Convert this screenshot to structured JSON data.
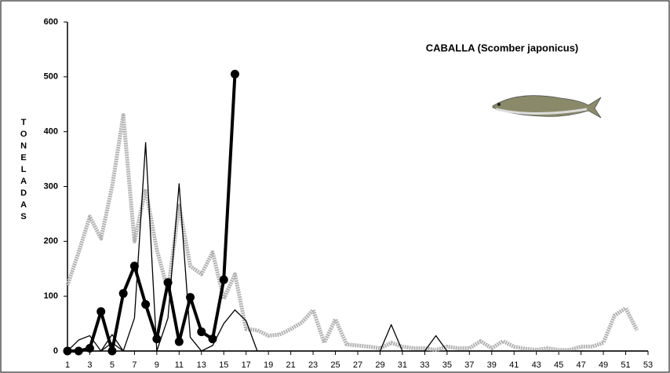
{
  "chart_data": {
    "type": "line",
    "title": "CABALLA (Scomber japonicus)",
    "y_label": "TONELADAS",
    "x": [
      1,
      2,
      3,
      4,
      5,
      6,
      7,
      8,
      9,
      10,
      11,
      12,
      13,
      14,
      15,
      16,
      17,
      18,
      19,
      20,
      21,
      22,
      23,
      24,
      25,
      26,
      27,
      28,
      29,
      30,
      31,
      32,
      33,
      34,
      35,
      36,
      37,
      38,
      39,
      40,
      41,
      42,
      43,
      44,
      45,
      46,
      47,
      48,
      49,
      50,
      51,
      52,
      53
    ],
    "xlim": [
      1,
      53
    ],
    "xticks": [
      1,
      3,
      5,
      7,
      9,
      11,
      13,
      15,
      17,
      19,
      21,
      23,
      25,
      27,
      29,
      31,
      33,
      35,
      37,
      39,
      41,
      43,
      45,
      47,
      49,
      51,
      53
    ],
    "ylim": [
      0,
      600
    ],
    "yticks": [
      0,
      100,
      200,
      300,
      400,
      500,
      600
    ],
    "series": [
      {
        "color": "#b3b3b3",
        "style": "dashed-thick",
        "values": [
          120,
          180,
          245,
          205,
          300,
          430,
          200,
          295,
          185,
          110,
          265,
          155,
          140,
          180,
          95,
          140,
          40,
          38,
          28,
          30,
          40,
          52,
          75,
          15,
          58,
          12,
          10,
          8,
          5,
          15,
          8,
          5,
          5,
          2,
          8,
          5,
          5,
          18,
          5,
          18,
          8,
          4,
          2,
          5,
          2,
          2,
          8,
          8,
          15,
          65,
          78,
          38,
          null
        ]
      },
      {
        "color": "#000000",
        "style": "thin",
        "values": [
          0,
          20,
          28,
          0,
          30,
          0,
          60,
          380,
          0,
          60,
          305,
          25,
          0,
          0,
          0,
          0,
          0,
          0,
          0,
          0,
          0,
          0,
          0,
          0,
          0,
          0,
          0,
          0,
          0,
          48,
          0,
          0,
          0,
          28,
          0,
          0,
          0,
          0,
          0,
          0,
          0,
          0,
          0,
          0,
          0,
          0,
          0,
          0,
          0,
          0,
          0,
          0,
          0
        ]
      },
      {
        "color": "#000000",
        "style": "thin",
        "values": [
          0,
          0,
          0,
          0,
          15,
          0,
          0,
          0,
          0,
          0,
          0,
          0,
          0,
          10,
          50,
          75,
          55,
          0,
          null,
          null,
          null,
          null,
          null,
          null,
          null,
          null,
          null,
          null,
          null,
          null,
          null,
          null,
          null,
          null,
          null,
          null,
          null,
          null,
          null,
          null,
          null,
          null,
          null,
          null,
          null,
          null,
          null,
          null,
          null,
          null,
          null,
          null,
          null
        ]
      },
      {
        "color": "#000000",
        "style": "thick-markers",
        "values": [
          0,
          0,
          5,
          72,
          0,
          105,
          155,
          85,
          22,
          125,
          17,
          98,
          35,
          22,
          130,
          505,
          null,
          null,
          null,
          null,
          null,
          null,
          null,
          null,
          null,
          null,
          null,
          null,
          null,
          null,
          null,
          null,
          null,
          null,
          null,
          null,
          null,
          null,
          null,
          null,
          null,
          null,
          null,
          null,
          null,
          null,
          null,
          null,
          null,
          null,
          null,
          null,
          null
        ]
      }
    ]
  }
}
